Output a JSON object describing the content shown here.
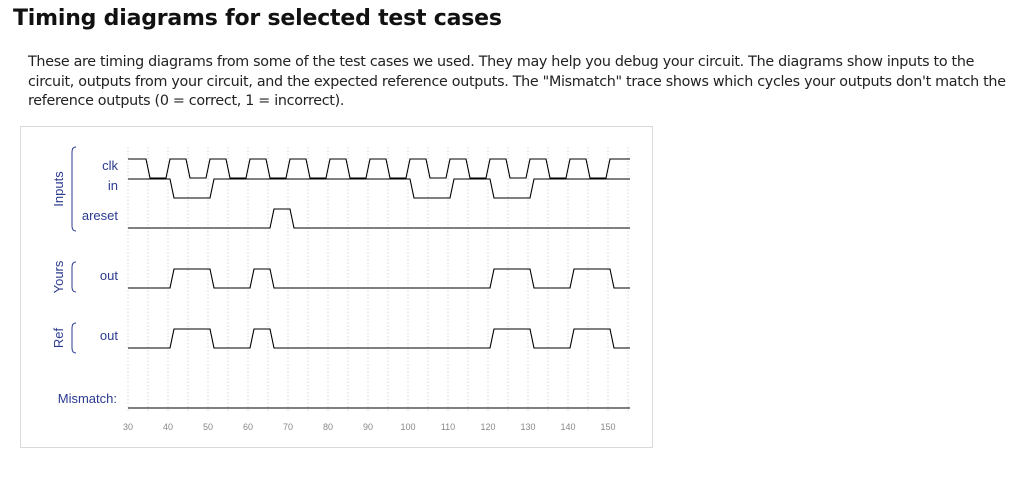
{
  "page": {
    "title": "Timing diagrams for selected test cases",
    "description": "These are timing diagrams from some of the test cases we used. They may help you debug your circuit. The diagrams show inputs to the circuit, outputs from your circuit, and the expected reference outputs. The \"Mismatch\" trace shows which cycles your outputs don't match the reference outputs (0 = correct, 1 = incorrect)."
  },
  "diagram": {
    "t_start": 30,
    "t_end": 155,
    "tick_values": [
      30,
      40,
      50,
      60,
      70,
      80,
      90,
      100,
      110,
      120,
      130,
      140,
      150
    ],
    "groups": [
      {
        "key": "inputs",
        "label": "Inputs"
      },
      {
        "key": "yours",
        "label": "Yours"
      },
      {
        "key": "ref",
        "label": "Ref"
      }
    ],
    "mismatch_label": "Mismatch:",
    "signals": [
      {
        "key": "clk",
        "name": "clk",
        "group": "inputs",
        "init": 1,
        "transitions": [
          [
            35,
            0
          ],
          [
            40,
            1
          ],
          [
            45,
            0
          ],
          [
            50,
            1
          ],
          [
            55,
            0
          ],
          [
            60,
            1
          ],
          [
            65,
            0
          ],
          [
            70,
            1
          ],
          [
            75,
            0
          ],
          [
            80,
            1
          ],
          [
            85,
            0
          ],
          [
            90,
            1
          ],
          [
            95,
            0
          ],
          [
            100,
            1
          ],
          [
            105,
            0
          ],
          [
            110,
            1
          ],
          [
            115,
            0
          ],
          [
            120,
            1
          ],
          [
            125,
            0
          ],
          [
            130,
            1
          ],
          [
            135,
            0
          ],
          [
            140,
            1
          ],
          [
            145,
            0
          ],
          [
            150,
            1
          ]
        ]
      },
      {
        "key": "in",
        "name": "in",
        "group": "inputs",
        "init": 1,
        "transitions": [
          [
            41,
            0
          ],
          [
            51,
            1
          ],
          [
            101,
            0
          ],
          [
            111,
            1
          ],
          [
            121,
            0
          ],
          [
            131,
            1
          ]
        ]
      },
      {
        "key": "areset",
        "name": "areset",
        "group": "inputs",
        "init": 0,
        "transitions": [
          [
            66,
            1
          ],
          [
            71,
            0
          ]
        ]
      },
      {
        "key": "yours_out",
        "name": "out",
        "group": "yours",
        "init": 0,
        "transitions": [
          [
            41,
            1
          ],
          [
            51,
            0
          ],
          [
            61,
            1
          ],
          [
            66,
            0
          ],
          [
            121,
            1
          ],
          [
            131,
            0
          ],
          [
            141,
            1
          ],
          [
            151,
            0
          ]
        ]
      },
      {
        "key": "ref_out",
        "name": "out",
        "group": "ref",
        "init": 0,
        "transitions": [
          [
            41,
            1
          ],
          [
            51,
            0
          ],
          [
            61,
            1
          ],
          [
            66,
            0
          ],
          [
            121,
            1
          ],
          [
            131,
            0
          ],
          [
            141,
            1
          ],
          [
            151,
            0
          ]
        ]
      },
      {
        "key": "mismatch",
        "name": "",
        "group": "mismatch",
        "init": 0,
        "transitions": []
      }
    ]
  }
}
